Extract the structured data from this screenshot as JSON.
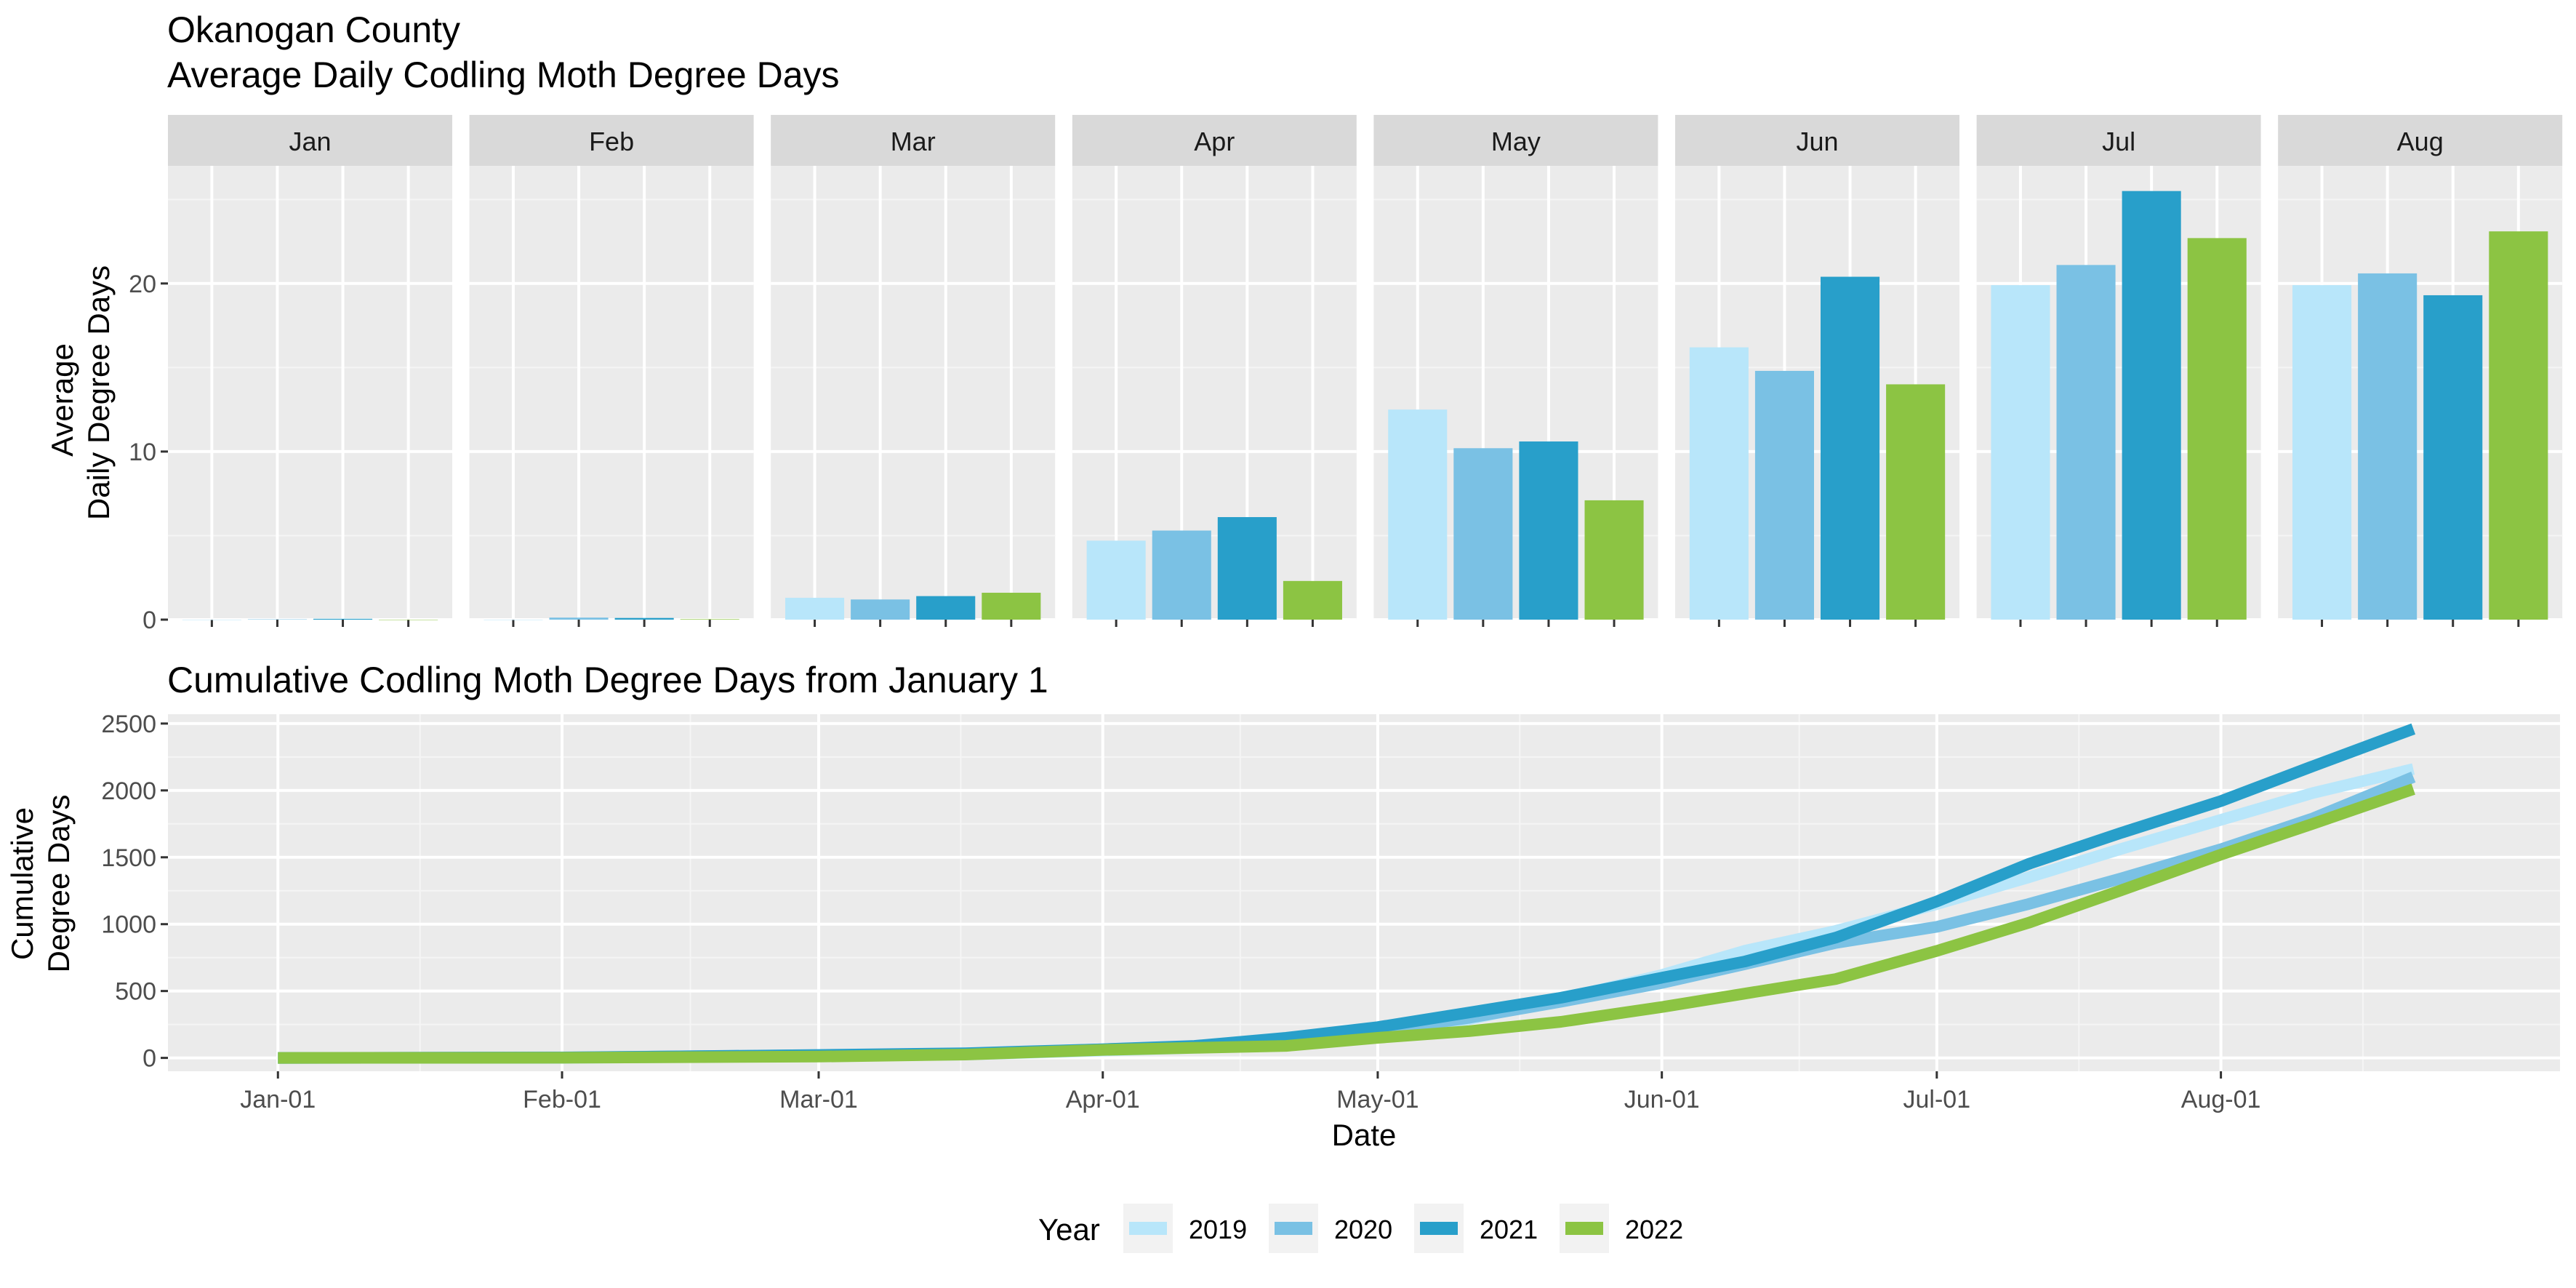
{
  "titles": {
    "main_line1": "Okanogan County",
    "main_line2": "Average Daily Codling Moth Degree Days",
    "bottom": "Cumulative Codling Moth Degree Days from January 1"
  },
  "legend": {
    "title": "Year",
    "items": [
      {
        "label": "2019",
        "color": "#B8E6FA"
      },
      {
        "label": "2020",
        "color": "#7AC1E4"
      },
      {
        "label": "2021",
        "color": "#289FCA"
      },
      {
        "label": "2022",
        "color": "#8CC443"
      }
    ]
  },
  "chart_data": [
    {
      "type": "bar",
      "faceted_by": "month",
      "ylabel_line1": "Average",
      "ylabel_line2": "Daily Degree Days",
      "ylim": [
        0,
        27
      ],
      "yticks": [
        0,
        10,
        20
      ],
      "grid": true,
      "facets": [
        {
          "label": "Jan",
          "series": [
            {
              "name": "2019",
              "value": 0.0
            },
            {
              "name": "2020",
              "value": 0.02
            },
            {
              "name": "2021",
              "value": 0.05
            },
            {
              "name": "2022",
              "value": 0.0
            }
          ]
        },
        {
          "label": "Feb",
          "series": [
            {
              "name": "2019",
              "value": 0.0
            },
            {
              "name": "2020",
              "value": 0.12
            },
            {
              "name": "2021",
              "value": 0.1
            },
            {
              "name": "2022",
              "value": 0.03
            }
          ]
        },
        {
          "label": "Mar",
          "series": [
            {
              "name": "2019",
              "value": 1.3
            },
            {
              "name": "2020",
              "value": 1.2
            },
            {
              "name": "2021",
              "value": 1.4
            },
            {
              "name": "2022",
              "value": 1.6
            }
          ]
        },
        {
          "label": "Apr",
          "series": [
            {
              "name": "2019",
              "value": 4.7
            },
            {
              "name": "2020",
              "value": 5.3
            },
            {
              "name": "2021",
              "value": 6.1
            },
            {
              "name": "2022",
              "value": 2.3
            }
          ]
        },
        {
          "label": "May",
          "series": [
            {
              "name": "2019",
              "value": 12.5
            },
            {
              "name": "2020",
              "value": 10.2
            },
            {
              "name": "2021",
              "value": 10.6
            },
            {
              "name": "2022",
              "value": 7.1
            }
          ]
        },
        {
          "label": "Jun",
          "series": [
            {
              "name": "2019",
              "value": 16.2
            },
            {
              "name": "2020",
              "value": 14.8
            },
            {
              "name": "2021",
              "value": 20.4
            },
            {
              "name": "2022",
              "value": 14.0
            }
          ]
        },
        {
          "label": "Jul",
          "series": [
            {
              "name": "2019",
              "value": 19.9
            },
            {
              "name": "2020",
              "value": 21.1
            },
            {
              "name": "2021",
              "value": 25.5
            },
            {
              "name": "2022",
              "value": 22.7
            }
          ]
        },
        {
          "label": "Aug",
          "series": [
            {
              "name": "2019",
              "value": 19.9
            },
            {
              "name": "2020",
              "value": 20.6
            },
            {
              "name": "2021",
              "value": 19.3
            },
            {
              "name": "2022",
              "value": 23.1
            }
          ]
        }
      ]
    },
    {
      "type": "line",
      "xlabel": "Date",
      "ylabel_line1": "Cumulative",
      "ylabel_line2": "Degree Days",
      "xlim": [
        -12,
        249
      ],
      "ylim": [
        -100,
        2570
      ],
      "yticks": [
        0,
        500,
        1000,
        1500,
        2000,
        2500
      ],
      "xticks": [
        {
          "label": "Jan-01",
          "day": 0
        },
        {
          "label": "Feb-01",
          "day": 31
        },
        {
          "label": "Mar-01",
          "day": 59
        },
        {
          "label": "Apr-01",
          "day": 90
        },
        {
          "label": "May-01",
          "day": 120
        },
        {
          "label": "Jun-01",
          "day": 151
        },
        {
          "label": "Jul-01",
          "day": 181
        },
        {
          "label": "Aug-01",
          "day": 212
        }
      ],
      "grid": true,
      "series": [
        {
          "name": "2019",
          "x": [
            0,
            31,
            59,
            75,
            90,
            100,
            110,
            120,
            130,
            140,
            151,
            160,
            170,
            181,
            191,
            201,
            212,
            222,
            233
          ],
          "y": [
            0,
            0,
            15,
            25,
            55,
            75,
            105,
            185,
            290,
            440,
            620,
            800,
            950,
            1150,
            1350,
            1560,
            1780,
            1980,
            2160
          ]
        },
        {
          "name": "2020",
          "x": [
            0,
            31,
            59,
            75,
            90,
            100,
            110,
            120,
            130,
            140,
            151,
            160,
            170,
            181,
            191,
            201,
            212,
            222,
            233
          ],
          "y": [
            0,
            4,
            20,
            30,
            65,
            85,
            115,
            200,
            300,
            420,
            560,
            700,
            860,
            980,
            1150,
            1340,
            1560,
            1790,
            2100
          ]
        },
        {
          "name": "2021",
          "x": [
            0,
            31,
            59,
            75,
            90,
            100,
            110,
            120,
            130,
            140,
            151,
            160,
            170,
            181,
            191,
            201,
            212,
            222,
            233
          ],
          "y": [
            0,
            3,
            22,
            35,
            65,
            90,
            150,
            230,
            340,
            450,
            600,
            720,
            900,
            1170,
            1450,
            1680,
            1920,
            2180,
            2460
          ]
        },
        {
          "name": "2022",
          "x": [
            0,
            31,
            59,
            75,
            90,
            100,
            110,
            120,
            130,
            140,
            151,
            160,
            170,
            181,
            191,
            201,
            212,
            222,
            233
          ],
          "y": [
            0,
            1,
            10,
            25,
            60,
            75,
            90,
            150,
            200,
            270,
            380,
            480,
            590,
            800,
            1010,
            1250,
            1520,
            1750,
            2010
          ]
        }
      ]
    }
  ]
}
